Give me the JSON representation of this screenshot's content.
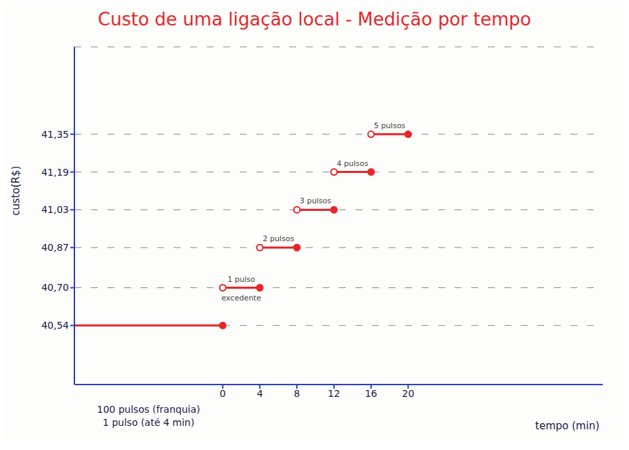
{
  "chart_data": {
    "type": "line",
    "title": "Custo de uma ligação local - Medição por tempo",
    "y_label": "custo(R$)",
    "x_label": "tempo (min)",
    "xlim": [
      -16,
      41
    ],
    "xticks": [
      0,
      4,
      8,
      12,
      16,
      20
    ],
    "ylim": [
      40.29,
      41.72
    ],
    "yticks": [
      {
        "value": 40.54,
        "label": "40,54"
      },
      {
        "value": 40.7,
        "label": "40,70"
      },
      {
        "value": 40.87,
        "label": "40,87"
      },
      {
        "value": 41.03,
        "label": "41,03"
      },
      {
        "value": 41.19,
        "label": "41,19"
      },
      {
        "value": 41.35,
        "label": "41,35"
      }
    ],
    "grid": true,
    "color": "#e8262a",
    "annotations": [
      "100 pulsos (franquia)",
      "1 pulso (até 4 min)"
    ],
    "series": [
      {
        "x": [
          -16,
          0
        ],
        "values": [
          40.54,
          40.54
        ],
        "marker": "closed_end"
      },
      {
        "label": "1 pulso",
        "note": "excedente",
        "x": [
          0,
          4
        ],
        "values": [
          40.7,
          40.7
        ],
        "marker": "open_closed"
      },
      {
        "label": "2 pulsos",
        "x": [
          4,
          8
        ],
        "values": [
          40.87,
          40.87
        ],
        "marker": "open_closed"
      },
      {
        "label": "3 pulsos",
        "x": [
          8,
          12
        ],
        "values": [
          41.03,
          41.03
        ],
        "marker": "open_closed"
      },
      {
        "label": "4 pulsos",
        "x": [
          12,
          16
        ],
        "values": [
          41.19,
          41.19
        ],
        "marker": "open_closed"
      },
      {
        "label": "5 pulsos",
        "x": [
          16,
          20
        ],
        "values": [
          41.35,
          41.35
        ],
        "marker": "open_closed"
      }
    ]
  }
}
